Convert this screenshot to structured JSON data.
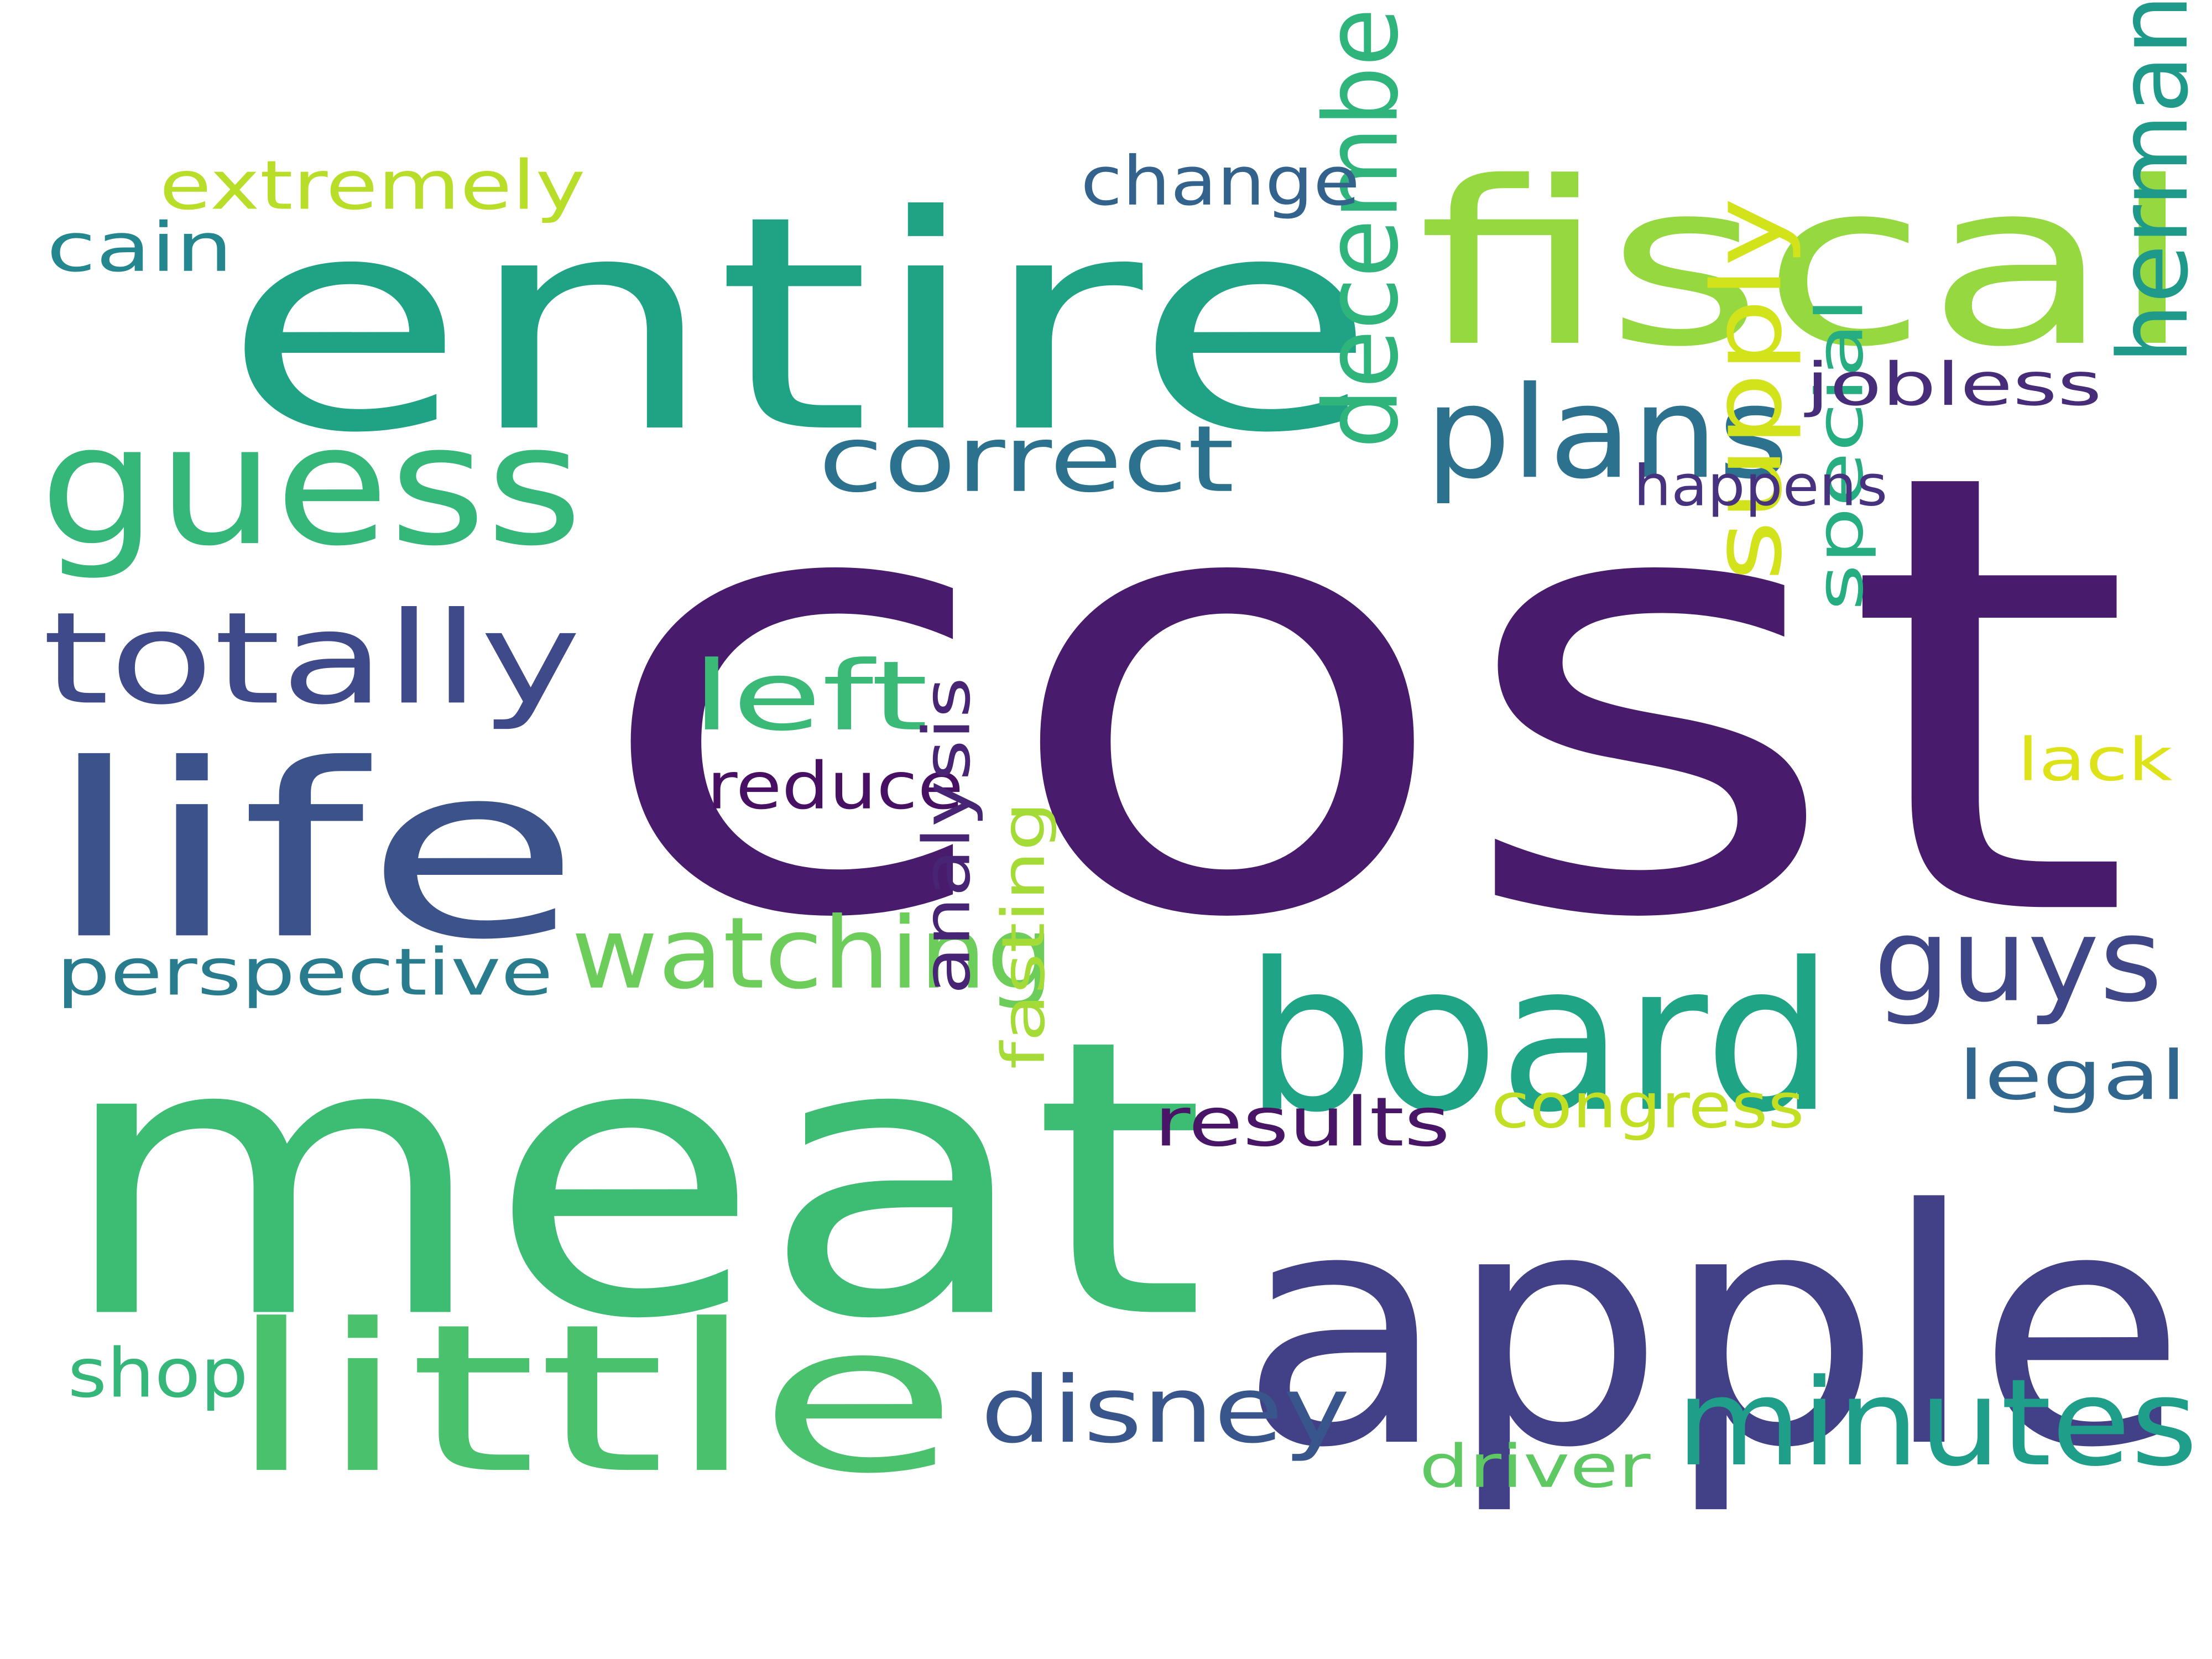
{
  "words": [
    {
      "text": "cost",
      "color": "#481b6d"
    },
    {
      "text": "meat",
      "color": "#3dbc74"
    },
    {
      "text": "entire",
      "color": "#20a385"
    },
    {
      "text": "apple",
      "color": "#424086"
    },
    {
      "text": "fiscal",
      "color": "#95d840"
    },
    {
      "text": "board",
      "color": "#20a486"
    },
    {
      "text": "little",
      "color": "#4ac16d"
    },
    {
      "text": "life",
      "color": "#3b528b"
    },
    {
      "text": "guess",
      "color": "#35b779"
    },
    {
      "text": "totally",
      "color": "#3e4a89"
    },
    {
      "text": "plans",
      "color": "#2c718e"
    },
    {
      "text": "minutes",
      "color": "#1f9e89"
    },
    {
      "text": "guys",
      "color": "#3f4788"
    },
    {
      "text": "watching",
      "color": "#6ccd5a"
    },
    {
      "text": "correct",
      "color": "#2c728e"
    },
    {
      "text": "disney",
      "color": "#39568c"
    },
    {
      "text": "left",
      "color": "#3aba76"
    },
    {
      "text": "december",
      "color": "#2fb47c"
    },
    {
      "text": "supply",
      "color": "#d2e21b"
    },
    {
      "text": "herman",
      "color": "#1f9a8a"
    },
    {
      "text": "change",
      "color": "#33638d"
    },
    {
      "text": "extremely",
      "color": "#b8de29"
    },
    {
      "text": "perspective",
      "color": "#287c8e"
    },
    {
      "text": "cain",
      "color": "#24868e"
    },
    {
      "text": "reduce",
      "color": "#471063"
    },
    {
      "text": "special",
      "color": "#26ad81"
    },
    {
      "text": "legal",
      "color": "#31668e"
    },
    {
      "text": "results",
      "color": "#481567"
    },
    {
      "text": "congress",
      "color": "#c2df23"
    },
    {
      "text": "jobless",
      "color": "#472c7a"
    },
    {
      "text": "happens",
      "color": "#46327e"
    },
    {
      "text": "shop",
      "color": "#35b779"
    },
    {
      "text": "analysis",
      "color": "#482475"
    },
    {
      "text": "fasting",
      "color": "#a5db36"
    },
    {
      "text": "driver",
      "color": "#5ec962"
    },
    {
      "text": "lack",
      "color": "#dde318"
    }
  ]
}
